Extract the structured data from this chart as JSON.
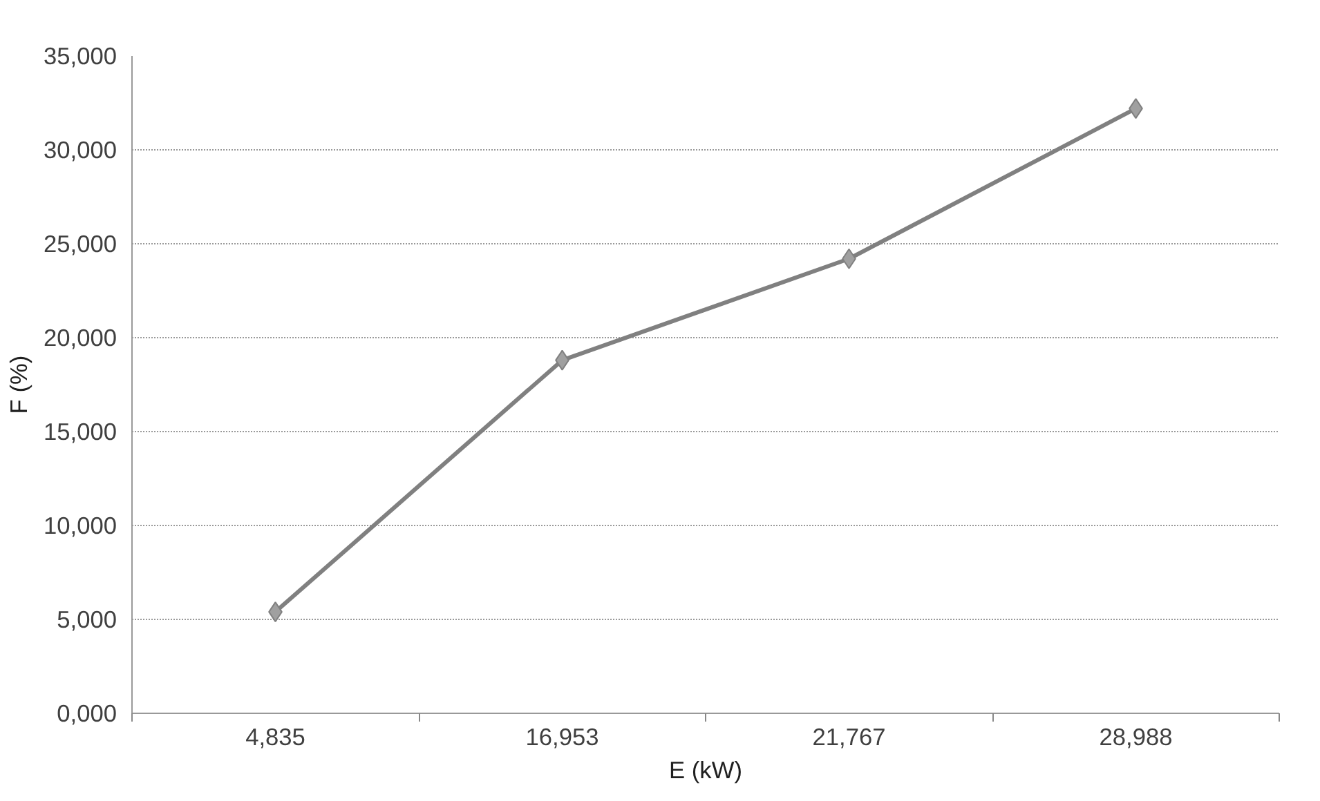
{
  "chart_data": {
    "type": "line",
    "categories": [
      "4,835",
      "16,953",
      "21,767",
      "28,988"
    ],
    "series": [
      {
        "color": "#808080",
        "values": [
          5400,
          18800,
          24200,
          32200
        ]
      }
    ],
    "xlabel": "E (kW)",
    "ylabel": "F (%)",
    "ylim": [
      0,
      35000
    ],
    "yticks": [
      {
        "value": 0,
        "label": "0,000"
      },
      {
        "value": 5000,
        "label": "5,000"
      },
      {
        "value": 10000,
        "label": "10,000"
      },
      {
        "value": 15000,
        "label": "15,000"
      },
      {
        "value": 20000,
        "label": "20,000"
      },
      {
        "value": 25000,
        "label": "25,000"
      },
      {
        "value": 30000,
        "label": "30,000"
      },
      {
        "value": 35000,
        "label": "35,000"
      }
    ],
    "grid": "y",
    "marker": "diamond",
    "line_style": "solid"
  }
}
